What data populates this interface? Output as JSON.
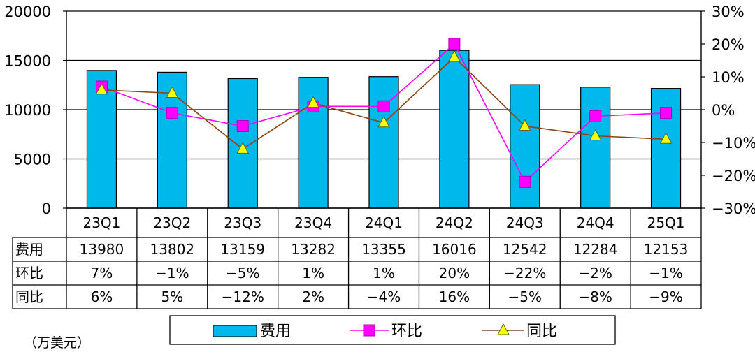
{
  "chart_data": {
    "type": "bar",
    "categories": [
      "23Q1",
      "23Q2",
      "23Q3",
      "23Q4",
      "24Q1",
      "24Q2",
      "24Q3",
      "24Q4",
      "25Q1"
    ],
    "series": [
      {
        "name": "费用",
        "type": "bar",
        "axis": "left",
        "color": "#00b8ec",
        "values": [
          13980,
          13802,
          13159,
          13282,
          13355,
          16016,
          12542,
          12284,
          12153
        ],
        "labels": [
          "13980",
          "13802",
          "13159",
          "13282",
          "13355",
          "16016",
          "12542",
          "12284",
          "12153"
        ]
      },
      {
        "name": "环比",
        "type": "line",
        "axis": "right",
        "color": "#ff00ff",
        "marker": "square",
        "values": [
          7,
          -1,
          -5,
          1,
          1,
          20,
          -22,
          -2,
          -1
        ],
        "labels": [
          "7%",
          "−1%",
          "−5%",
          "1%",
          "1%",
          "20%",
          "−22%",
          "−2%",
          "−1%"
        ]
      },
      {
        "name": "同比",
        "type": "line",
        "axis": "right",
        "color": "#8b4513",
        "marker_color": "#ffff00",
        "marker": "triangle",
        "values": [
          6,
          5,
          -12,
          2,
          -4,
          16,
          -5,
          -8,
          -9
        ],
        "labels": [
          "6%",
          "5%",
          "−12%",
          "2%",
          "−4%",
          "16%",
          "−5%",
          "−8%",
          "−9%"
        ]
      }
    ],
    "y_left": {
      "min": 0,
      "max": 20000,
      "ticks": [
        "0",
        "5000",
        "10000",
        "15000",
        "20000"
      ]
    },
    "y_right": {
      "min": -30,
      "max": 30,
      "ticks": [
        "−30%",
        "−20%",
        "−10%",
        "0%",
        "10%",
        "20%",
        "30%"
      ]
    },
    "unit_label": "（万美元）",
    "grid": true,
    "data_table": true,
    "legend_position": "bottom"
  }
}
